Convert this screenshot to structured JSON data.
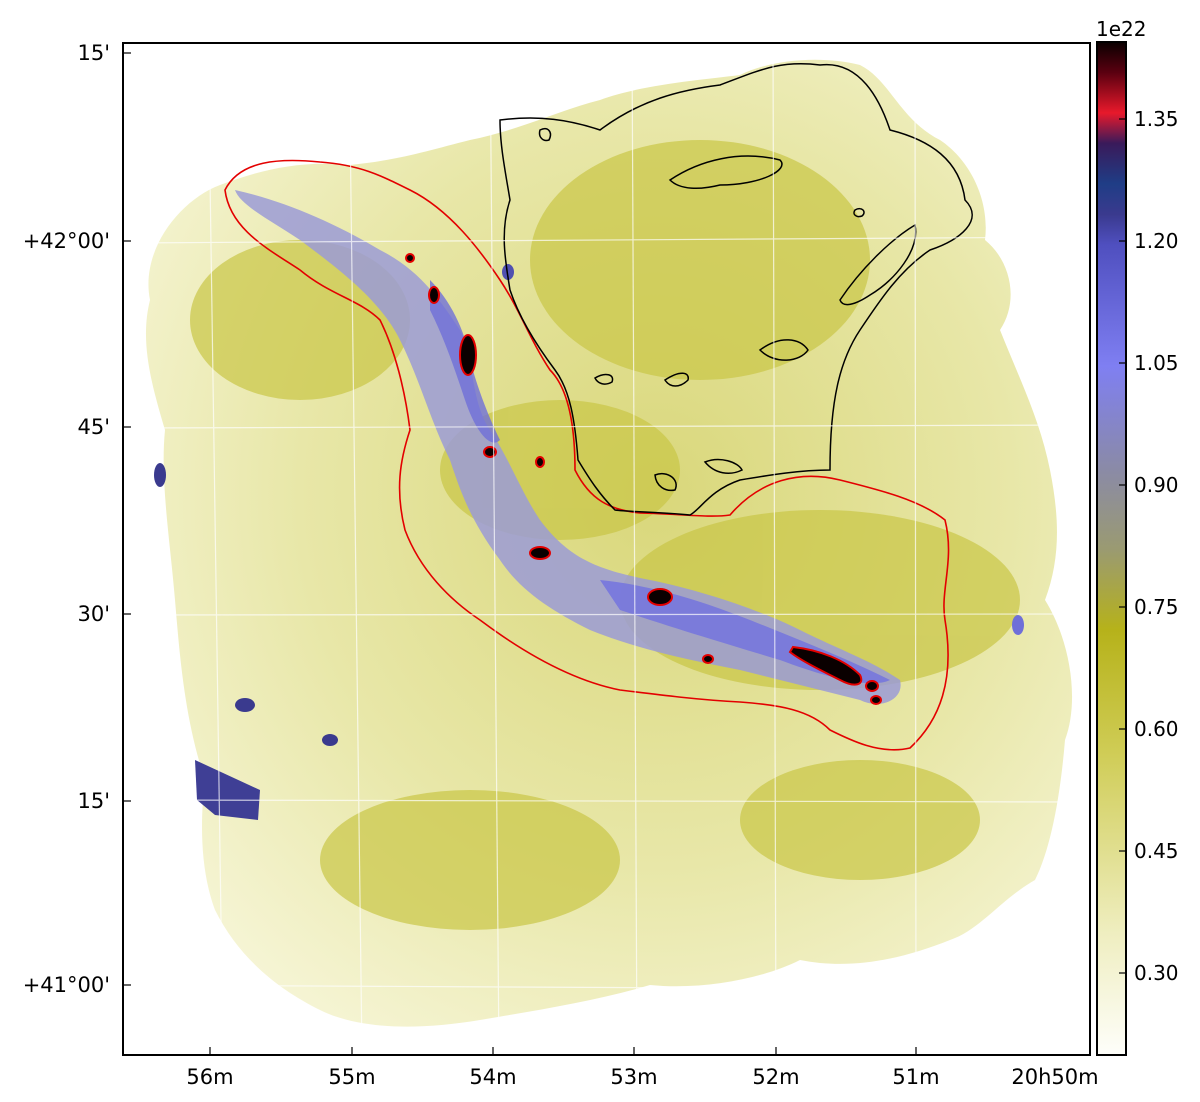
{
  "image": {
    "projection_axes": {
      "x_tick_labels": [
        "56m",
        "55m",
        "54m",
        "53m",
        "52m",
        "51m",
        "20h50m"
      ],
      "y_tick_labels": [
        "15'",
        "+42°00'",
        "45'",
        "30'",
        "15'",
        "+41°00'"
      ]
    },
    "colorbar": {
      "exponent_label": "1e22",
      "tick_labels": [
        "0.30",
        "0.45",
        "0.60",
        "0.75",
        "0.90",
        "1.05",
        "1.20",
        "1.35"
      ],
      "colors": {
        "low": "#fdfdf6",
        "mid_low": "#e6e49a",
        "mid": "#b8b41e",
        "mid_high": "#8a8aa0",
        "blue": "#7f7ff2",
        "dark_blue": "#3a3a8e",
        "navy": "#1f3d86",
        "red": "#e8192b",
        "black": "#0a0000"
      }
    },
    "contours": {
      "red_contour_color": "#e30000",
      "black_contour_color": "#000000"
    }
  }
}
